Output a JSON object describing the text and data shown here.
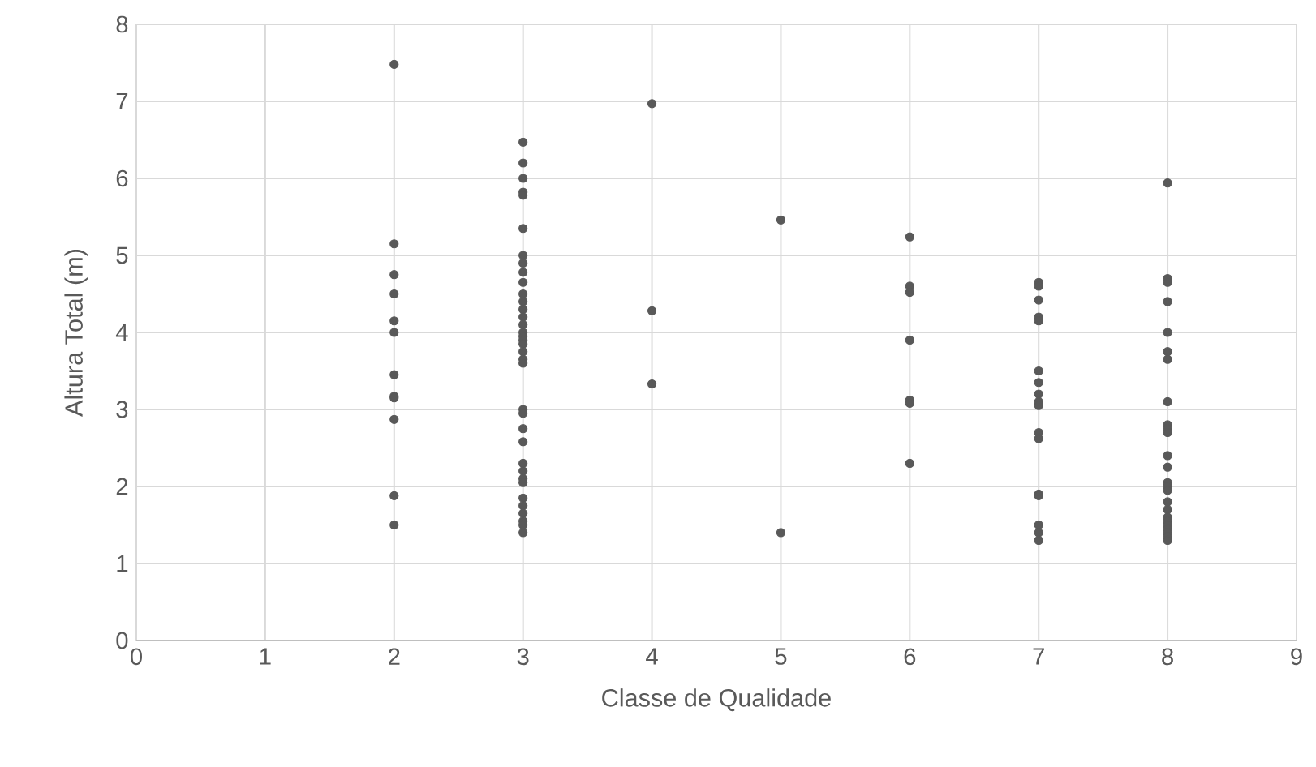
{
  "chart_data": {
    "type": "scatter",
    "xlabel": "Classe de Qualidade",
    "ylabel": "Altura Total (m)",
    "xlim": [
      0,
      9
    ],
    "xticks": [
      0,
      1,
      2,
      3,
      4,
      5,
      6,
      7,
      8,
      9
    ],
    "ylim": [
      0,
      8
    ],
    "yticks": [
      0,
      1,
      2,
      3,
      4,
      5,
      6,
      7,
      8
    ],
    "grid": true,
    "marker": "circle",
    "series": [
      {
        "color": "#595959",
        "x": [
          2,
          2,
          2,
          2,
          2,
          2,
          2,
          2,
          2,
          2,
          2,
          2,
          3,
          3,
          3,
          3,
          3,
          3,
          3,
          3,
          3,
          3,
          3,
          3,
          3,
          3,
          3,
          3,
          3,
          3,
          3,
          3,
          3,
          3,
          3,
          3,
          3,
          3,
          3,
          3,
          3,
          3,
          3,
          3,
          3,
          3,
          3,
          3,
          4,
          4,
          4,
          5,
          5,
          6,
          6,
          6,
          6,
          6,
          6,
          6,
          7,
          7,
          7,
          7,
          7,
          7,
          7,
          7,
          7,
          7,
          7,
          7,
          7,
          7,
          7,
          7,
          7,
          8,
          8,
          8,
          8,
          8,
          8,
          8,
          8,
          8,
          8,
          8,
          8,
          8,
          8,
          8,
          8,
          8,
          8,
          8,
          8,
          8,
          8,
          8,
          8,
          8
        ],
        "values": [
          7.48,
          5.15,
          4.75,
          4.5,
          4.15,
          4.0,
          3.45,
          3.17,
          3.15,
          2.87,
          1.88,
          1.5,
          6.47,
          6.2,
          6.0,
          5.82,
          5.78,
          5.35,
          5.0,
          4.9,
          4.78,
          4.65,
          4.5,
          4.4,
          4.3,
          4.2,
          4.1,
          4.0,
          3.95,
          3.9,
          3.85,
          3.75,
          3.65,
          3.6,
          3.0,
          2.95,
          2.75,
          2.58,
          2.3,
          2.2,
          2.1,
          2.05,
          1.85,
          1.75,
          1.65,
          1.55,
          1.5,
          1.4,
          6.97,
          4.28,
          3.33,
          5.46,
          1.4,
          5.24,
          4.6,
          4.52,
          3.9,
          3.12,
          3.08,
          2.3,
          4.65,
          4.6,
          4.42,
          4.2,
          4.15,
          3.5,
          3.35,
          3.2,
          3.1,
          3.05,
          2.7,
          2.62,
          1.9,
          1.88,
          1.5,
          1.4,
          1.3,
          5.94,
          4.7,
          4.65,
          4.4,
          4.0,
          3.75,
          3.65,
          3.1,
          2.8,
          2.75,
          2.7,
          2.4,
          2.25,
          2.05,
          2.0,
          1.95,
          1.8,
          1.7,
          1.6,
          1.55,
          1.5,
          1.45,
          1.4,
          1.35,
          1.3
        ]
      }
    ]
  }
}
